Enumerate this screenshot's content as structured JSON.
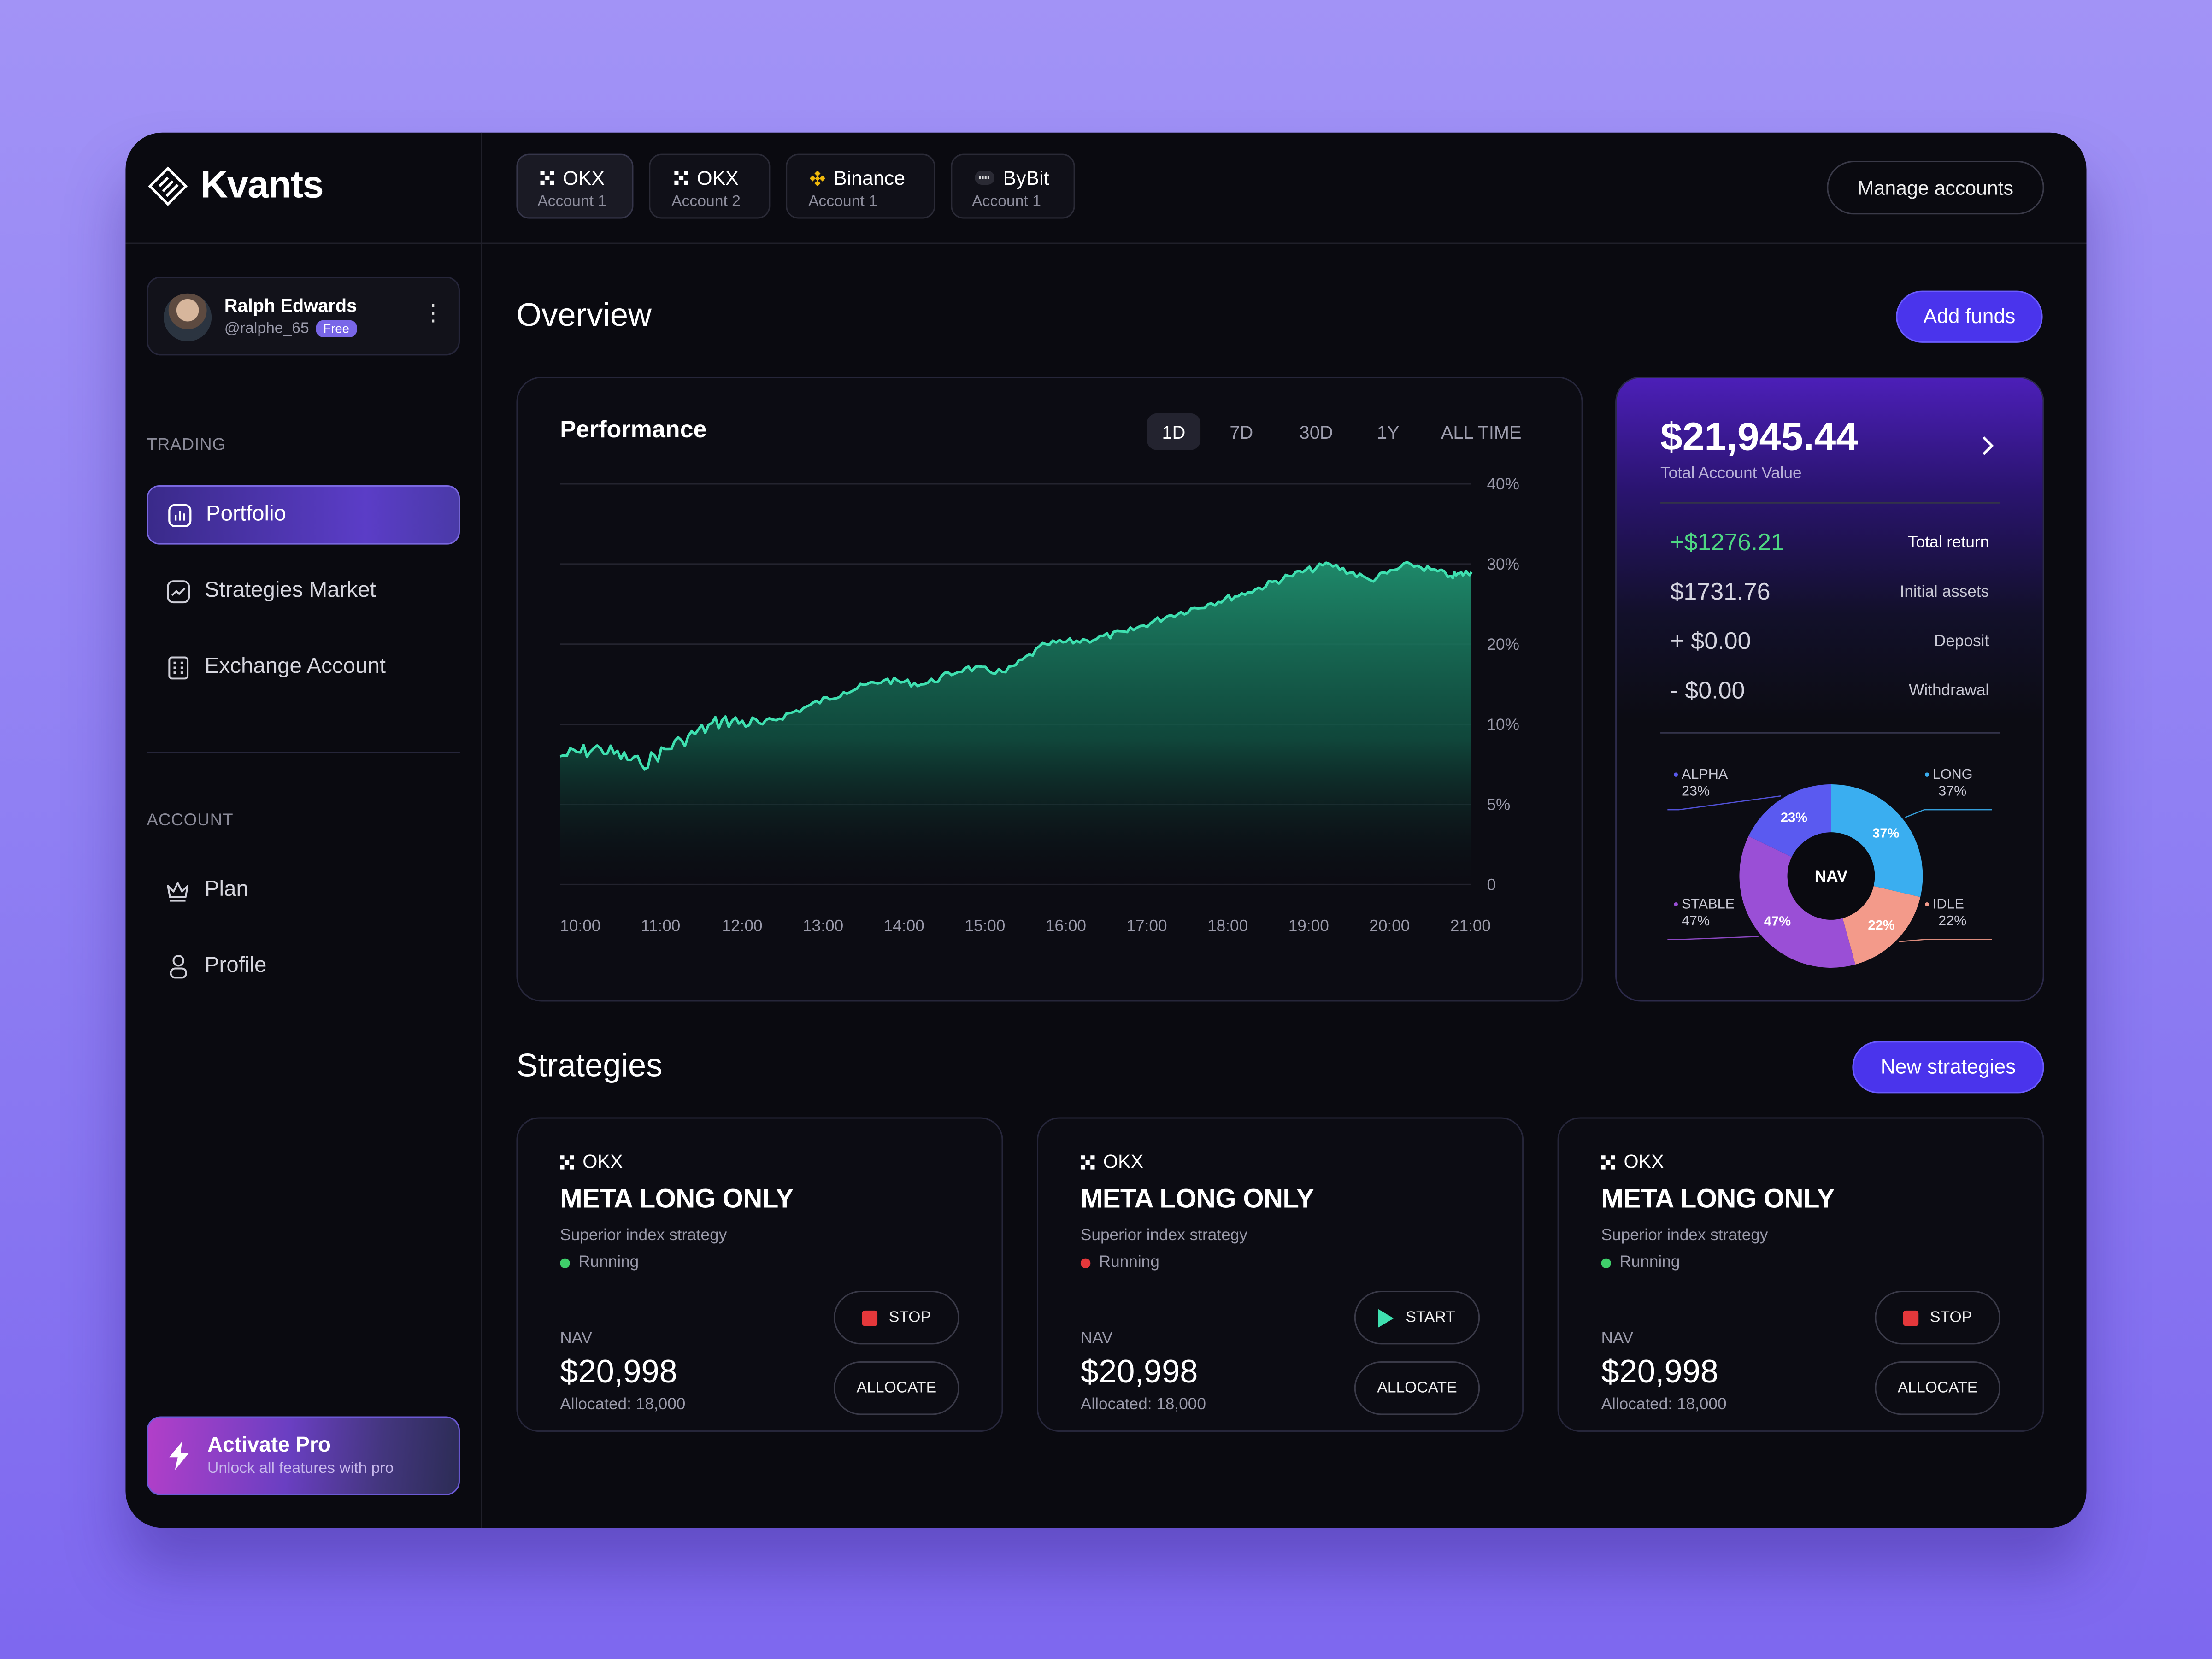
{
  "brand": {
    "name": "Kvants"
  },
  "exchanges": [
    {
      "name": "OKX",
      "account": "Account 1",
      "active": true
    },
    {
      "name": "OKX",
      "account": "Account 2",
      "active": false
    },
    {
      "name": "Binance",
      "account": "Account 1",
      "active": false
    },
    {
      "name": "ByBit",
      "account": "Account 1",
      "active": false
    }
  ],
  "manage_accounts_label": "Manage accounts",
  "user": {
    "name": "Ralph Edwards",
    "handle": "@ralphe_65",
    "plan": "Free"
  },
  "sidebar": {
    "trading_label": "TRADING",
    "trading_items": [
      {
        "label": "Portfolio",
        "active": true
      },
      {
        "label": "Strategies Market",
        "active": false
      },
      {
        "label": "Exchange Account",
        "active": false
      }
    ],
    "account_label": "ACCOUNT",
    "account_items": [
      {
        "label": "Plan"
      },
      {
        "label": "Profile"
      }
    ],
    "pro": {
      "title": "Activate Pro",
      "subtitle": "Unlock all features with pro"
    }
  },
  "overview": {
    "title": "Overview",
    "add_funds_label": "Add funds",
    "performance": {
      "title": "Performance",
      "ranges": [
        "1D",
        "7D",
        "30D",
        "1Y",
        "ALL TIME"
      ],
      "selected_range": "1D"
    }
  },
  "account_value": {
    "total": "$21,945.44",
    "total_label": "Total Account Value",
    "rows": [
      {
        "value": "+$1276.21",
        "label": "Total return"
      },
      {
        "value": "$1731.76",
        "label": "Initial assets"
      },
      {
        "value": "+ $0.00",
        "label": "Deposit"
      },
      {
        "value": "- $0.00",
        "label": "Withdrawal"
      }
    ],
    "donut_center_label": "NAV",
    "allocation": [
      {
        "name": "LONG",
        "value": 37,
        "color": "#3aaef0"
      },
      {
        "name": "IDLE",
        "value": 22,
        "color": "#f39a8a"
      },
      {
        "name": "STABLE",
        "value": 47,
        "color": "#9a4fd6"
      },
      {
        "name": "ALPHA",
        "value": 23,
        "color": "#5a5af0"
      }
    ]
  },
  "chart_data": {
    "type": "area",
    "title": "Performance",
    "x_ticks": [
      "10:00",
      "11:00",
      "12:00",
      "13:00",
      "14:00",
      "15:00",
      "16:00",
      "17:00",
      "18:00",
      "19:00",
      "20:00",
      "21:00"
    ],
    "y_ticks": [
      "0",
      "5%",
      "10%",
      "20%",
      "30%",
      "40%"
    ],
    "x": [
      "10:00",
      "10:30",
      "11:00",
      "11:30",
      "12:00",
      "12:30",
      "13:00",
      "13:30",
      "14:00",
      "14:30",
      "15:00",
      "15:30",
      "16:00",
      "16:30",
      "17:00",
      "17:30",
      "18:00",
      "18:30",
      "19:00",
      "19:30",
      "20:00",
      "20:30",
      "21:00",
      "21:15"
    ],
    "values": [
      8.0,
      8.5,
      7.5,
      9.0,
      10.5,
      10.0,
      12.0,
      14.0,
      15.5,
      15.0,
      17.0,
      16.5,
      20.0,
      20.5,
      21.5,
      23.5,
      25.0,
      26.5,
      28.5,
      30.0,
      28.0,
      30.0,
      28.5,
      29.0
    ],
    "series_color": "#3fe0b0"
  },
  "strategies": {
    "title": "Strategies",
    "new_label": "New strategies",
    "cards": [
      {
        "exchange": "OKX",
        "name": "META LONG ONLY",
        "description": "Superior index strategy",
        "status": "Running",
        "status_color": "#3fcf6a",
        "nav_label": "NAV",
        "nav": "$20,998",
        "allocated": "Allocated: 18,000",
        "action": "STOP",
        "allocate_label": "ALLOCATE"
      },
      {
        "exchange": "OKX",
        "name": "META LONG ONLY",
        "description": "Superior index strategy",
        "status": "Running",
        "status_color": "#e5383b",
        "nav_label": "NAV",
        "nav": "$20,998",
        "allocated": "Allocated: 18,000",
        "action": "START",
        "allocate_label": "ALLOCATE"
      },
      {
        "exchange": "OKX",
        "name": "META LONG ONLY",
        "description": "Superior index strategy",
        "status": "Running",
        "status_color": "#3fcf6a",
        "nav_label": "NAV",
        "nav": "$20,998",
        "allocated": "Allocated: 18,000",
        "action": "STOP",
        "allocate_label": "ALLOCATE"
      }
    ]
  }
}
